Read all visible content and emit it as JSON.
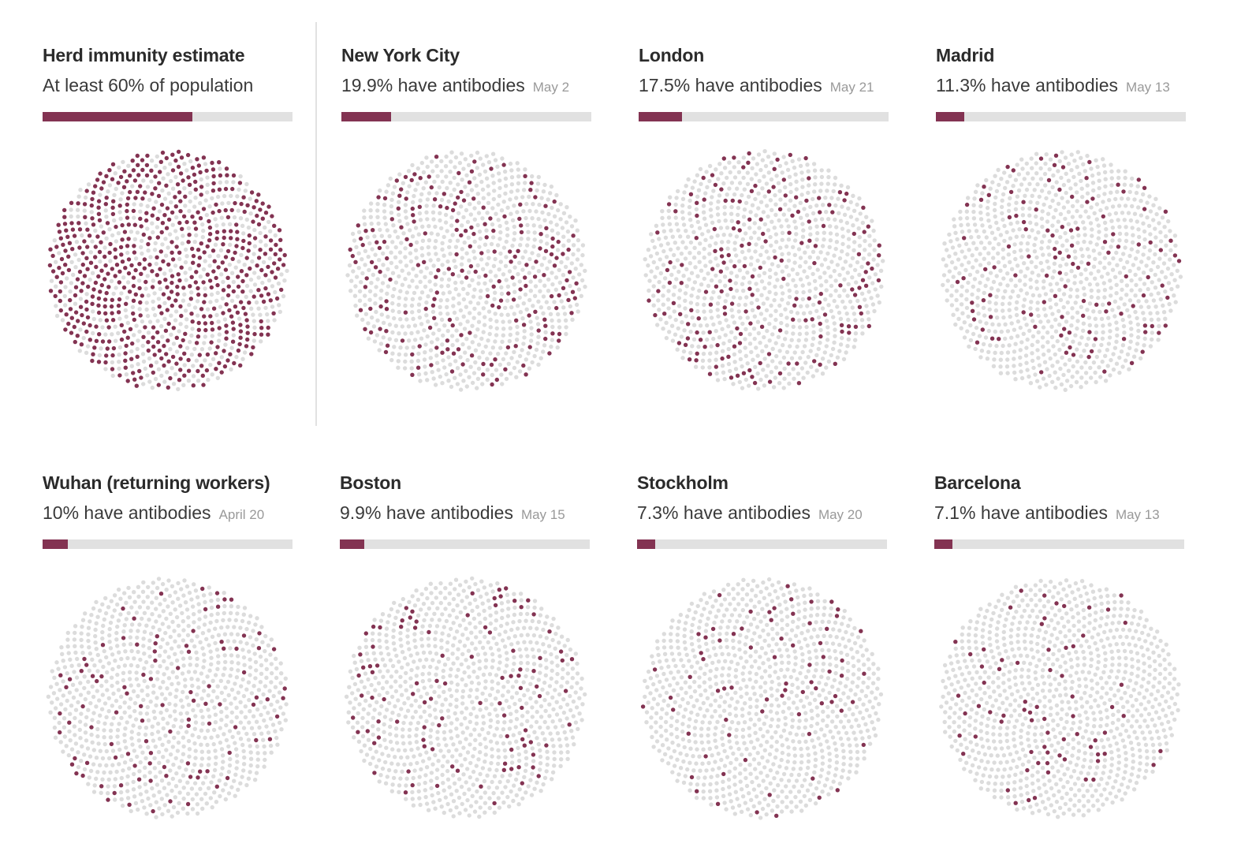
{
  "colors": {
    "infected": "#833352",
    "uninfected": "#dcdcdc",
    "bar_track": "#e1e1e1"
  },
  "chart_data": [
    {
      "type": "dot-grid",
      "title": "Herd immunity estimate",
      "subtitle": "At least 60% of population",
      "date": "",
      "value": 60
    },
    {
      "type": "dot-grid",
      "title": "New York City",
      "subtitle": "19.9% have antibodies",
      "date": "May 2",
      "value": 19.9
    },
    {
      "type": "dot-grid",
      "title": "London",
      "subtitle": "17.5% have antibodies",
      "date": "May 21",
      "value": 17.5
    },
    {
      "type": "dot-grid",
      "title": "Madrid",
      "subtitle": "11.3% have antibodies",
      "date": "May 13",
      "value": 11.3
    },
    {
      "type": "dot-grid",
      "title": "Wuhan (returning workers)",
      "subtitle": "10% have antibodies",
      "date": "April 20",
      "value": 10
    },
    {
      "type": "dot-grid",
      "title": "Boston",
      "subtitle": "9.9% have antibodies",
      "date": "May 15",
      "value": 9.9
    },
    {
      "type": "dot-grid",
      "title": "Stockholm",
      "subtitle": "7.3% have antibodies",
      "date": "May 20",
      "value": 7.3
    },
    {
      "type": "dot-grid",
      "title": "Barcelona",
      "subtitle": "7.1% have antibodies",
      "date": "May 13",
      "value": 7.1
    }
  ]
}
